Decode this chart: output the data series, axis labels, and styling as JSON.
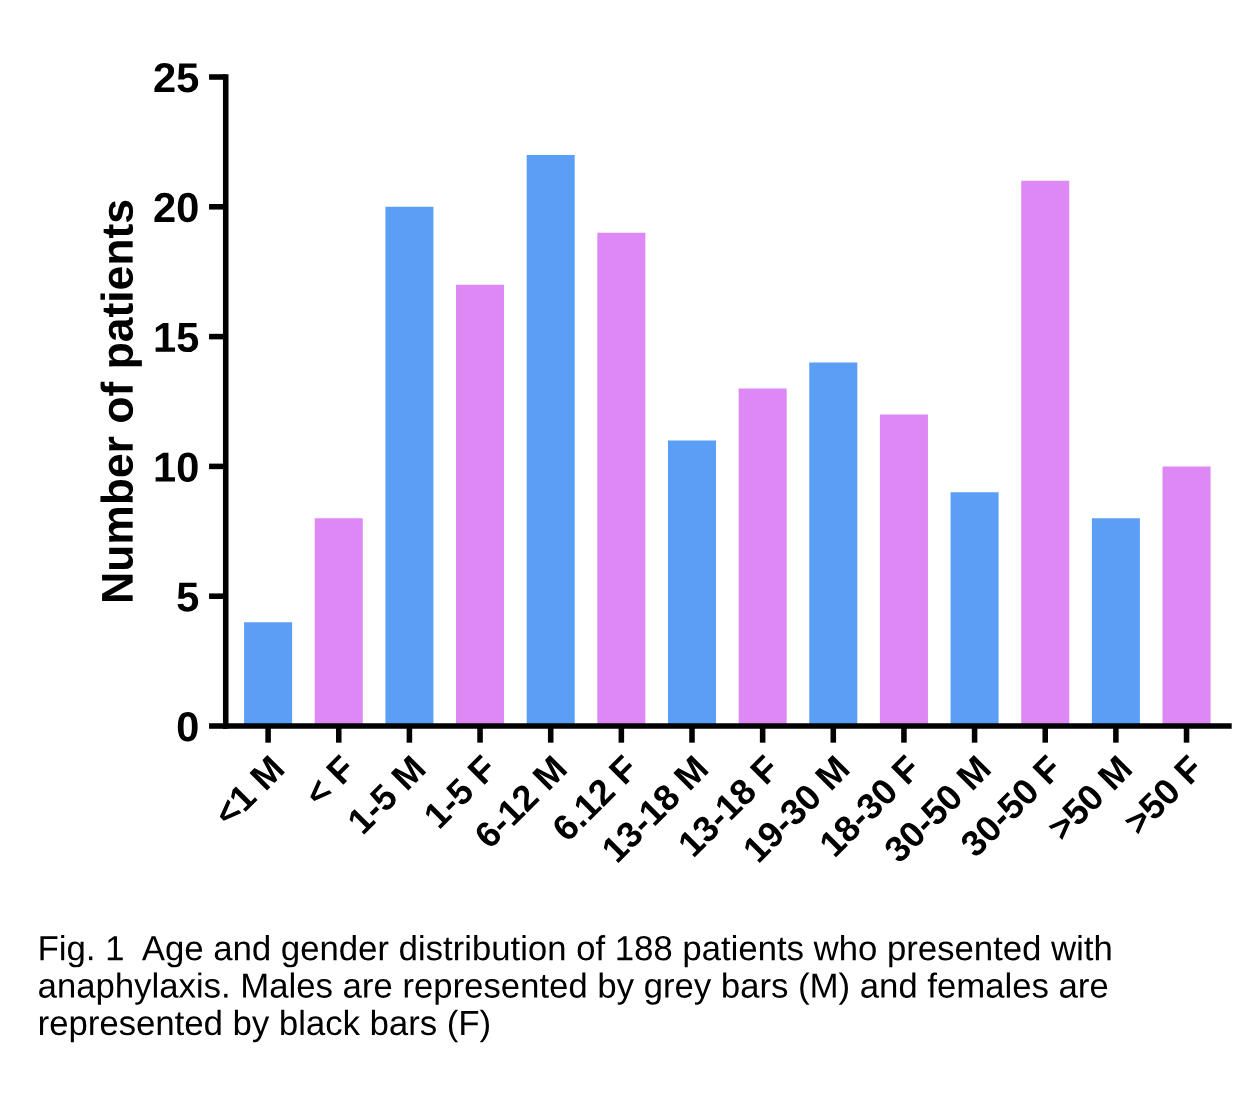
{
  "chart_data": {
    "type": "bar",
    "ylabel": "Number of patients",
    "categories": [
      "<1 M",
      "< F",
      "1-5 M",
      "1-5 F",
      "6-12 M",
      "6.12 F",
      "13-18 M",
      "13-18 F",
      "19-30 M",
      "18-30 F",
      "30-50 M",
      "30-50 F",
      ">50 M",
      ">50 F"
    ],
    "values": [
      4,
      8,
      20,
      17,
      22,
      19,
      11,
      13,
      14,
      12,
      9,
      21,
      8,
      10
    ],
    "colors": [
      "#5a9ef5",
      "#dd88f5",
      "#5a9ef5",
      "#dd88f5",
      "#5a9ef5",
      "#dd88f5",
      "#5a9ef5",
      "#dd88f5",
      "#5a9ef5",
      "#dd88f5",
      "#5a9ef5",
      "#dd88f5",
      "#5a9ef5",
      "#dd88f5"
    ],
    "ylim": [
      0,
      25
    ],
    "yticks": [
      0,
      5,
      10,
      15,
      20,
      25
    ],
    "grid": false,
    "legend": false,
    "annotations": [
      "Fig. 1  Age and gender distribution of 188 patients who presented with anaphylaxis. Males are represented by grey bars (M) and females are represented by black bars (F)"
    ]
  }
}
